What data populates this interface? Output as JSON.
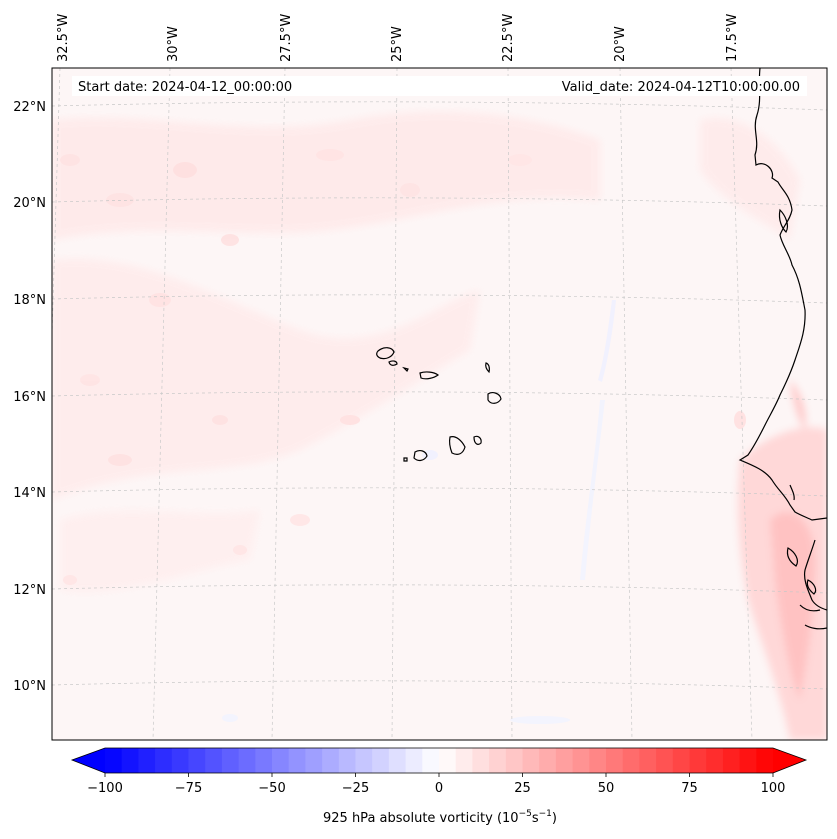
{
  "map": {
    "start_label": "Start date: 2024-04-12_00:00:00",
    "valid_label": "Valid_date: 2024-04-12T10:00:00.00",
    "lon_labels": [
      "32.5°W",
      "30°W",
      "27.5°W",
      "25°W",
      "22.5°W",
      "20°W",
      "17.5°W"
    ],
    "lat_labels": [
      "22°N",
      "20°N",
      "18°N",
      "16°N",
      "14°N",
      "12°N",
      "10°N"
    ]
  },
  "colorbar": {
    "label_main": "925 hPa absolute vorticity (10",
    "exp1": "−5",
    "label_mid": "s",
    "exp2": "−1",
    "label_end": ")",
    "ticks": [
      "−100",
      "−75",
      "−50",
      "−25",
      "0",
      "25",
      "50",
      "75",
      "100"
    ],
    "colors": {
      "min": "#0000ff",
      "mid": "#ffffff",
      "max": "#ff0000"
    }
  },
  "colors": {
    "background_field": "#fdf6f6",
    "coastline": "#000000",
    "gridline": "#c8c8c8"
  }
}
